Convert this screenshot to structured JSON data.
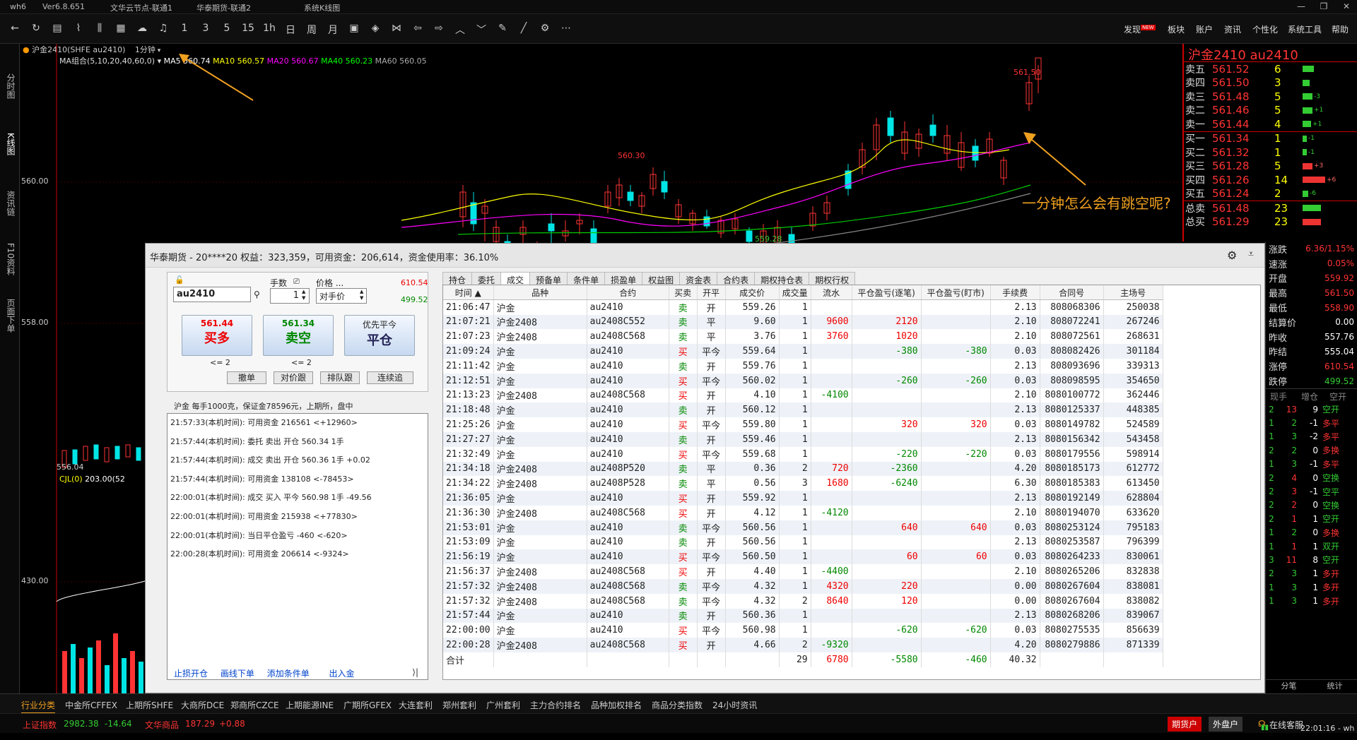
{
  "titlebar": {
    "logo": "wh6",
    "version": "Ver6.8.651",
    "tab1": "文华云节点-联通1",
    "tab2": "华泰期货-联通2",
    "tab3": "系统K线图"
  },
  "topnav": {
    "discover": "发现",
    "new_badge": "NEW",
    "sector": "板块",
    "account": "账户",
    "info": "资讯",
    "personal": "个性化",
    "tools": "系统工具",
    "help": "帮助"
  },
  "toolbar_periods": [
    "1",
    "3",
    "5",
    "15",
    "1h",
    "日",
    "周",
    "月"
  ],
  "chart": {
    "contract": "沪金2410(SHFE au2410)",
    "period": "1分钟",
    "ma_label": "MA组合(5,10,20,40,60,0)",
    "ma5": "MA5 560.74",
    "ma10": "MA10 560.57",
    "ma20": "MA20 560.67",
    "ma40": "MA40 560.23",
    "ma60": "MA60 560.05",
    "price_high": "561.50",
    "price_mid_high": "560.30",
    "price_low": "559.28",
    "y560": "560.00",
    "y558": "558.00",
    "y430": "430.00",
    "vol_label": "CJL(0)",
    "vol_val": "203.00(52",
    "annotation": "一分钟怎么会有跳空呢?",
    "partial_val": "556.04"
  },
  "left_tabs": [
    "分时图",
    "K线图",
    "资讯链",
    "F10资料",
    "页面下单"
  ],
  "quote": {
    "title": "沪金2410 au2410",
    "asks": [
      {
        "label": "卖五",
        "price": "561.52",
        "vol": "6",
        "chg": ""
      },
      {
        "label": "卖四",
        "price": "561.50",
        "vol": "3",
        "chg": ""
      },
      {
        "label": "卖三",
        "price": "561.48",
        "vol": "5",
        "chg": "-3"
      },
      {
        "label": "卖二",
        "price": "561.46",
        "vol": "5",
        "chg": "+1"
      },
      {
        "label": "卖一",
        "price": "561.44",
        "vol": "4",
        "chg": "+1"
      }
    ],
    "bids": [
      {
        "label": "买一",
        "price": "561.34",
        "vol": "1",
        "chg": "-1"
      },
      {
        "label": "买二",
        "price": "561.32",
        "vol": "1",
        "chg": "-1"
      },
      {
        "label": "买三",
        "price": "561.28",
        "vol": "5",
        "chg": "+3"
      },
      {
        "label": "买四",
        "price": "561.26",
        "vol": "14",
        "chg": "+6"
      },
      {
        "label": "买五",
        "price": "561.24",
        "vol": "2",
        "chg": "-6"
      }
    ],
    "total_sell": {
      "label": "总卖",
      "price": "561.48",
      "vol": "23"
    },
    "total_buy": {
      "label": "总买",
      "price": "561.29",
      "vol": "23"
    },
    "stats": [
      {
        "k": "涨跌",
        "v": "6.36/1.15%",
        "c": "#f33"
      },
      {
        "k": "速涨",
        "v": "0.05%",
        "c": "#f33"
      },
      {
        "k": "开盘",
        "v": "559.92",
        "c": "#f33"
      },
      {
        "k": "最高",
        "v": "561.50",
        "c": "#f33"
      },
      {
        "k": "最低",
        "v": "558.90",
        "c": "#f33"
      },
      {
        "k": "结算价",
        "v": "0.00",
        "c": "#fff"
      },
      {
        "k": "昨收",
        "v": "557.76",
        "c": "#fff"
      },
      {
        "k": "昨结",
        "v": "555.04",
        "c": "#fff"
      },
      {
        "k": "涨停",
        "v": "610.54",
        "c": "#f33"
      },
      {
        "k": "跌停",
        "v": "499.52",
        "c": "#3c3"
      }
    ],
    "ticks_header": [
      "现手",
      "增仓",
      "空开"
    ],
    "ticks": [
      [
        "2",
        "13",
        "9",
        "空开"
      ],
      [
        "1",
        "2",
        "-1",
        "多平"
      ],
      [
        "1",
        "3",
        "-2",
        "多平"
      ],
      [
        "2",
        "2",
        "0",
        "多换"
      ],
      [
        "1",
        "3",
        "-1",
        "多平"
      ],
      [
        "2",
        "4",
        "0",
        "空换"
      ],
      [
        "2",
        "3",
        "-1",
        "空平"
      ],
      [
        "2",
        "2",
        "0",
        "空换"
      ],
      [
        "2",
        "1",
        "1",
        "空开"
      ],
      [
        "1",
        "2",
        "0",
        "多换"
      ],
      [
        "1",
        "1",
        "1",
        "双开"
      ],
      [
        "3",
        "11",
        "8",
        "空开"
      ],
      [
        "2",
        "3",
        "1",
        "多开"
      ],
      [
        "1",
        "3",
        "1",
        "多开"
      ],
      [
        "1",
        "3",
        "1",
        "多开"
      ]
    ],
    "tab_left": "分笔",
    "tab_right": "统计"
  },
  "dialog": {
    "title": "华泰期货 - 20****20  权益：323,359，可用资金：206,614，资金使用率：36.10%",
    "contract_input": "au2410",
    "qty_label": "手数",
    "qty_value": "1",
    "price_label": "价格 ...",
    "price_value": "对手价",
    "limit_up": "610.54",
    "limit_down": "499.52",
    "buy_price": "561.44",
    "buy_label": "买多",
    "sell_price": "561.34",
    "sell_label": "卖空",
    "close_top": "优先平今",
    "close_label": "平仓",
    "le1": "<= 2",
    "le2": "<= 2",
    "small_btns": [
      "撤单",
      "对价跟",
      "排队跟",
      "连续追"
    ],
    "info_line": "沪金  每手1000克，保证金78596元，上期所，盘中",
    "log": [
      "21:57:33(本机时间): 可用资金 216561  <+12960>",
      "21:57:44(本机时间): 委托  卖出  开仓  560.34  1手",
      "21:57:44(本机时间): 成交  卖出  开仓  560.36  1手  +0.02",
      "21:57:44(本机时间): 可用资金 138108  <-78453>",
      "22:00:01(本机时间): 成交  买入  平今  560.98  1手  -49.56",
      "22:00:01(本机时间): 可用资金 215938  <+77830>",
      "22:00:01(本机时间): 当日平仓盈亏  -460  <-620>",
      "22:00:28(本机时间): 可用资金 206614  <-9324>"
    ],
    "bottom_links": [
      "止损开仓",
      "画线下单",
      "添加条件单",
      "出入金"
    ],
    "tabs": [
      "持仓",
      "委托",
      "成交",
      "预备单",
      "条件单",
      "损盈单",
      "权益图",
      "资金表",
      "合约表",
      "期权持仓表",
      "期权行权"
    ],
    "active_tab": "成交",
    "headers": [
      "时间 ▲",
      "品种",
      "合约",
      "买卖",
      "开平",
      "成交价",
      "成交量",
      "流水",
      "平仓盈亏(逐笔)",
      "平仓盈亏(盯市)",
      "手续费",
      "合同号",
      "主场号"
    ],
    "rows": [
      [
        "21:06:47",
        "沪金",
        "au2410",
        "卖",
        "开",
        "559.26",
        "1",
        "",
        "",
        "",
        "2.13",
        "808068306",
        "250038"
      ],
      [
        "21:07:21",
        "沪金2408",
        "au2408C552",
        "卖",
        "平",
        "9.60",
        "1",
        "9600",
        "2120",
        "",
        "2.10",
        "808072241",
        "267246"
      ],
      [
        "21:07:23",
        "沪金2408",
        "au2408C568",
        "卖",
        "平",
        "3.76",
        "1",
        "3760",
        "1020",
        "",
        "2.10",
        "808072561",
        "268631"
      ],
      [
        "21:09:24",
        "沪金",
        "au2410",
        "买",
        "平今",
        "559.64",
        "1",
        "",
        "-380",
        "-380",
        "0.03",
        "808082426",
        "301184"
      ],
      [
        "21:11:42",
        "沪金",
        "au2410",
        "卖",
        "开",
        "559.76",
        "1",
        "",
        "",
        "",
        "2.13",
        "808093696",
        "339313"
      ],
      [
        "21:12:51",
        "沪金",
        "au2410",
        "买",
        "平今",
        "560.02",
        "1",
        "",
        "-260",
        "-260",
        "0.03",
        "808098595",
        "354650"
      ],
      [
        "21:13:23",
        "沪金2408",
        "au2408C568",
        "买",
        "开",
        "4.10",
        "1",
        "-4100",
        "",
        "",
        "2.10",
        "8080100772",
        "362446"
      ],
      [
        "21:18:48",
        "沪金",
        "au2410",
        "卖",
        "开",
        "560.12",
        "1",
        "",
        "",
        "",
        "2.13",
        "8080125337",
        "448385"
      ],
      [
        "21:25:26",
        "沪金",
        "au2410",
        "买",
        "平今",
        "559.80",
        "1",
        "",
        "320",
        "320",
        "0.03",
        "8080149782",
        "524589"
      ],
      [
        "21:27:27",
        "沪金",
        "au2410",
        "卖",
        "开",
        "559.46",
        "1",
        "",
        "",
        "",
        "2.13",
        "8080156342",
        "543458"
      ],
      [
        "21:32:49",
        "沪金",
        "au2410",
        "买",
        "平今",
        "559.68",
        "1",
        "",
        "-220",
        "-220",
        "0.03",
        "8080179556",
        "598914"
      ],
      [
        "21:34:18",
        "沪金2408",
        "au2408P520",
        "卖",
        "平",
        "0.36",
        "2",
        "720",
        "-2360",
        "",
        "4.20",
        "8080185173",
        "612772"
      ],
      [
        "21:34:22",
        "沪金2408",
        "au2408P528",
        "卖",
        "平",
        "0.56",
        "3",
        "1680",
        "-6240",
        "",
        "6.30",
        "8080185383",
        "613450"
      ],
      [
        "21:36:05",
        "沪金",
        "au2410",
        "买",
        "开",
        "559.92",
        "1",
        "",
        "",
        "",
        "2.13",
        "8080192149",
        "628804"
      ],
      [
        "21:36:30",
        "沪金2408",
        "au2408C568",
        "买",
        "开",
        "4.12",
        "1",
        "-4120",
        "",
        "",
        "2.10",
        "8080194070",
        "633620"
      ],
      [
        "21:53:01",
        "沪金",
        "au2410",
        "卖",
        "平今",
        "560.56",
        "1",
        "",
        "640",
        "640",
        "0.03",
        "8080253124",
        "795183"
      ],
      [
        "21:53:09",
        "沪金",
        "au2410",
        "卖",
        "开",
        "560.56",
        "1",
        "",
        "",
        "",
        "2.13",
        "8080253587",
        "796399"
      ],
      [
        "21:56:19",
        "沪金",
        "au2410",
        "买",
        "平今",
        "560.50",
        "1",
        "",
        "60",
        "60",
        "0.03",
        "8080264233",
        "830061"
      ],
      [
        "21:56:37",
        "沪金2408",
        "au2408C568",
        "买",
        "开",
        "4.40",
        "1",
        "-4400",
        "",
        "",
        "2.10",
        "8080265206",
        "832838"
      ],
      [
        "21:57:32",
        "沪金2408",
        "au2408C568",
        "卖",
        "平今",
        "4.32",
        "1",
        "4320",
        "220",
        "",
        "0.00",
        "8080267604",
        "838081"
      ],
      [
        "21:57:32",
        "沪金2408",
        "au2408C568",
        "卖",
        "平今",
        "4.32",
        "2",
        "8640",
        "120",
        "",
        "0.00",
        "8080267604",
        "838082"
      ],
      [
        "21:57:44",
        "沪金",
        "au2410",
        "卖",
        "开",
        "560.36",
        "1",
        "",
        "",
        "",
        "2.13",
        "8080268206",
        "839067"
      ],
      [
        "22:00:00",
        "沪金",
        "au2410",
        "买",
        "平今",
        "560.98",
        "1",
        "",
        "-620",
        "-620",
        "0.03",
        "8080275535",
        "856639"
      ],
      [
        "22:00:28",
        "沪金2408",
        "au2408C568",
        "买",
        "开",
        "4.66",
        "2",
        "-9320",
        "",
        "",
        "4.20",
        "8080279886",
        "871339"
      ]
    ],
    "total": {
      "label": "合计",
      "vol": "29",
      "flow": "6780",
      "pnl1": "-5580",
      "pnl2": "-460",
      "fee": "40.32"
    }
  },
  "bottom1": [
    "行业分类",
    "中金所CFFEX",
    "上期所SHFE",
    "大商所DCE",
    "郑商所CZCE",
    "上期能源INE",
    "广期所GFEX",
    "大连套利",
    "郑州套利",
    "广州套利",
    "主力合约排名",
    "品种加权排名",
    "商品分类指数",
    "24小时资讯"
  ],
  "bottom2": {
    "index_name": "上证指数",
    "index_val": "2982.38",
    "index_chg": "-14.64",
    "goods_name": "文华商品",
    "goods_val": "187.29",
    "goods_chg": "+0.88",
    "futures_btn": "期货户",
    "outer_btn": "外盘户",
    "online": "在线客服",
    "clock": "22:01:16 - wh"
  },
  "colors": {
    "red": "#ff3333",
    "green": "#33cc33",
    "bg": "#000000",
    "accent": "#f0a020"
  }
}
